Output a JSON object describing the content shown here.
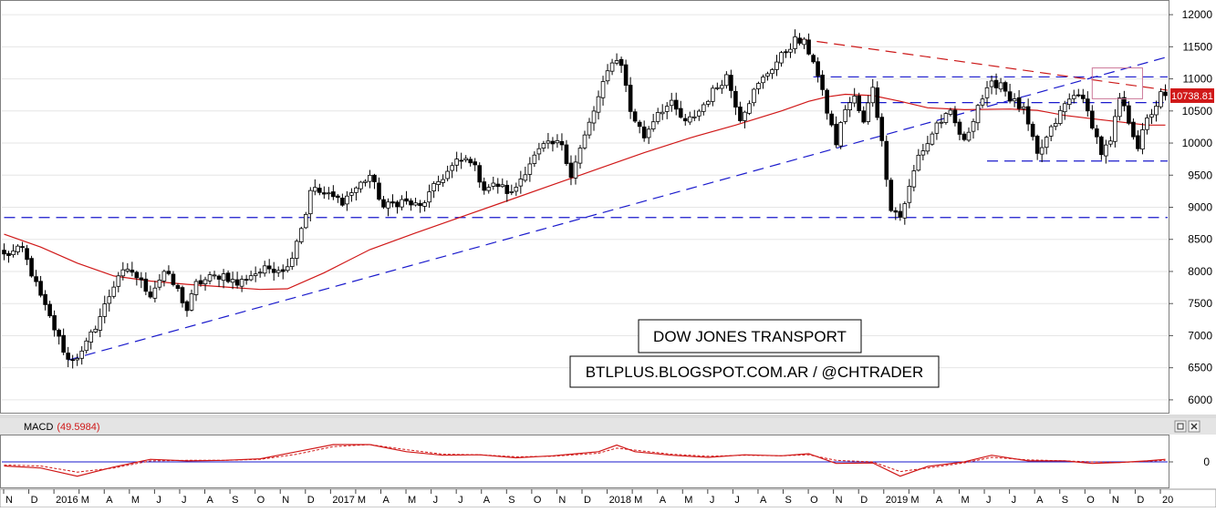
{
  "chart_data": {
    "type": "candlestick",
    "title": "DOW JONES TRANSPORT",
    "subtitle": "BTLPLUS.BLOGSPOT.COM.AR / @CHTRADER",
    "price_axis": {
      "ylim": [
        5800,
        12200
      ],
      "ticks": [
        6000,
        6500,
        7000,
        7500,
        8000,
        8500,
        9000,
        9500,
        10000,
        10500,
        11000,
        11500,
        12000
      ],
      "labels": [
        "6000",
        "6500",
        "7000",
        "7500",
        "8000",
        "8500",
        "9000",
        "9500",
        "10000",
        "10500",
        "11000",
        "11500",
        "12000"
      ],
      "last_price_label": "10738.81",
      "last_price": 10738.81
    },
    "time_axis": {
      "labels": [
        "N",
        "D",
        "2016",
        "M",
        "A",
        "M",
        "J",
        "J",
        "A",
        "S",
        "O",
        "N",
        "D",
        "2017",
        "M",
        "A",
        "M",
        "J",
        "J",
        "A",
        "S",
        "O",
        "N",
        "D",
        "2018",
        "M",
        "A",
        "M",
        "J",
        "J",
        "A",
        "S",
        "O",
        "N",
        "D",
        "2019",
        "M",
        "A",
        "M",
        "J",
        "J",
        "A",
        "S",
        "O",
        "N",
        "D",
        "20"
      ]
    },
    "anchors": [
      [
        0,
        8250
      ],
      [
        4,
        8350
      ],
      [
        8,
        7600
      ],
      [
        12,
        6950
      ],
      [
        14,
        6620
      ],
      [
        17,
        6720
      ],
      [
        21,
        7300
      ],
      [
        25,
        7950
      ],
      [
        28,
        8000
      ],
      [
        32,
        7650
      ],
      [
        35,
        8000
      ],
      [
        38,
        7700
      ],
      [
        40,
        7400
      ],
      [
        42,
        7800
      ],
      [
        45,
        7900
      ],
      [
        48,
        7950
      ],
      [
        51,
        7800
      ],
      [
        54,
        7950
      ],
      [
        58,
        8050
      ],
      [
        62,
        8050
      ],
      [
        64,
        8500
      ],
      [
        66,
        8900
      ],
      [
        67,
        9300
      ],
      [
        70,
        9200
      ],
      [
        74,
        9100
      ],
      [
        77,
        9300
      ],
      [
        80,
        9500
      ],
      [
        83,
        9000
      ],
      [
        87,
        9100
      ],
      [
        91,
        9000
      ],
      [
        95,
        9400
      ],
      [
        99,
        9700
      ],
      [
        102,
        9750
      ],
      [
        105,
        9300
      ],
      [
        108,
        9350
      ],
      [
        111,
        9200
      ],
      [
        115,
        9700
      ],
      [
        118,
        9950
      ],
      [
        122,
        10000
      ],
      [
        124,
        9500
      ],
      [
        127,
        10100
      ],
      [
        130,
        10700
      ],
      [
        133,
        11300
      ],
      [
        135,
        11250
      ],
      [
        137,
        10500
      ],
      [
        140,
        10100
      ],
      [
        143,
        10500
      ],
      [
        146,
        10600
      ],
      [
        149,
        10300
      ],
      [
        152,
        10500
      ],
      [
        155,
        10800
      ],
      [
        158,
        11050
      ],
      [
        161,
        10400
      ],
      [
        164,
        10800
      ],
      [
        167,
        11100
      ],
      [
        170,
        11350
      ],
      [
        173,
        11600
      ],
      [
        175,
        11550
      ],
      [
        177,
        11300
      ],
      [
        180,
        10500
      ],
      [
        182,
        10000
      ],
      [
        184,
        10550
      ],
      [
        186,
        10700
      ],
      [
        188,
        10300
      ],
      [
        190,
        10900
      ],
      [
        192,
        10000
      ],
      [
        194,
        9000
      ],
      [
        196,
        8850
      ],
      [
        198,
        9300
      ],
      [
        200,
        9800
      ],
      [
        202,
        10000
      ],
      [
        204,
        10300
      ],
      [
        207,
        10450
      ],
      [
        210,
        10000
      ],
      [
        213,
        10600
      ],
      [
        216,
        10900
      ],
      [
        218,
        10950
      ],
      [
        220,
        10700
      ],
      [
        223,
        10500
      ],
      [
        226,
        9800
      ],
      [
        229,
        10200
      ],
      [
        232,
        10600
      ],
      [
        235,
        10800
      ],
      [
        238,
        10300
      ],
      [
        240,
        9850
      ],
      [
        242,
        10000
      ],
      [
        244,
        10700
      ],
      [
        246,
        10350
      ],
      [
        248,
        9950
      ],
      [
        250,
        10350
      ],
      [
        252,
        10600
      ],
      [
        253,
        10750
      ],
      [
        254,
        10739
      ]
    ],
    "moving_average": {
      "points": [
        [
          0,
          8580
        ],
        [
          8,
          8380
        ],
        [
          16,
          8130
        ],
        [
          24,
          7930
        ],
        [
          32,
          7850
        ],
        [
          40,
          7800
        ],
        [
          48,
          7760
        ],
        [
          56,
          7720
        ],
        [
          62,
          7730
        ],
        [
          70,
          7980
        ],
        [
          80,
          8340
        ],
        [
          90,
          8600
        ],
        [
          100,
          8850
        ],
        [
          110,
          9100
        ],
        [
          120,
          9350
        ],
        [
          130,
          9600
        ],
        [
          140,
          9850
        ],
        [
          150,
          10080
        ],
        [
          160,
          10280
        ],
        [
          170,
          10500
        ],
        [
          176,
          10650
        ],
        [
          180,
          10720
        ],
        [
          184,
          10760
        ],
        [
          190,
          10740
        ],
        [
          196,
          10650
        ],
        [
          202,
          10550
        ],
        [
          210,
          10520
        ],
        [
          220,
          10530
        ],
        [
          226,
          10510
        ],
        [
          232,
          10430
        ],
        [
          238,
          10380
        ],
        [
          244,
          10330
        ],
        [
          250,
          10280
        ],
        [
          254,
          10280
        ]
      ]
    },
    "lines": [
      {
        "style": "dashed",
        "color": "#1a1acc",
        "from": [
          14,
          6620
        ],
        "to": [
          400,
          14200
        ]
      },
      {
        "style": "dashed",
        "color": "#1a1acc",
        "from": [
          0,
          8840
        ],
        "to": [
          277,
          8840
        ]
      },
      {
        "style": "dashed",
        "color": "#1a1acc",
        "from": [
          183,
          10630
        ],
        "to": [
          277,
          10630
        ]
      },
      {
        "style": "dashed",
        "color": "#1a1acc",
        "from": [
          177,
          11030
        ],
        "to": [
          277,
          11030
        ]
      },
      {
        "style": "dashed",
        "color": "#1a1acc",
        "from": [
          215,
          9720
        ],
        "to": [
          277,
          9720
        ]
      },
      {
        "style": "dashed",
        "color": "#cc1a1a",
        "from": [
          174,
          11620
        ],
        "to": [
          277,
          10600
        ]
      }
    ],
    "highlight_box": {
      "from": [
        238,
        10690
      ],
      "to": [
        249,
        11170
      ]
    },
    "macd": {
      "label": "MACD",
      "value_label": "(49.5984)",
      "ylim": [
        -500,
        500
      ],
      "ticks": [
        0
      ],
      "main": [
        [
          0,
          -80
        ],
        [
          8,
          -120
        ],
        [
          16,
          -280
        ],
        [
          24,
          -100
        ],
        [
          32,
          50
        ],
        [
          40,
          20
        ],
        [
          48,
          30
        ],
        [
          56,
          60
        ],
        [
          64,
          200
        ],
        [
          72,
          340
        ],
        [
          80,
          340
        ],
        [
          88,
          200
        ],
        [
          96,
          130
        ],
        [
          104,
          140
        ],
        [
          112,
          80
        ],
        [
          120,
          120
        ],
        [
          130,
          200
        ],
        [
          134,
          330
        ],
        [
          138,
          200
        ],
        [
          146,
          130
        ],
        [
          154,
          90
        ],
        [
          162,
          140
        ],
        [
          170,
          120
        ],
        [
          176,
          160
        ],
        [
          182,
          -30
        ],
        [
          190,
          -20
        ],
        [
          196,
          -280
        ],
        [
          202,
          -90
        ],
        [
          210,
          0
        ],
        [
          216,
          130
        ],
        [
          224,
          20
        ],
        [
          232,
          20
        ],
        [
          238,
          -30
        ],
        [
          244,
          -10
        ],
        [
          250,
          20
        ],
        [
          254,
          49.6
        ]
      ],
      "signal": [
        [
          0,
          -60
        ],
        [
          8,
          -80
        ],
        [
          16,
          -200
        ],
        [
          24,
          -120
        ],
        [
          32,
          20
        ],
        [
          40,
          30
        ],
        [
          48,
          30
        ],
        [
          56,
          50
        ],
        [
          64,
          150
        ],
        [
          72,
          300
        ],
        [
          80,
          340
        ],
        [
          88,
          240
        ],
        [
          96,
          150
        ],
        [
          104,
          140
        ],
        [
          112,
          100
        ],
        [
          120,
          110
        ],
        [
          130,
          170
        ],
        [
          134,
          270
        ],
        [
          138,
          230
        ],
        [
          146,
          150
        ],
        [
          154,
          110
        ],
        [
          162,
          130
        ],
        [
          170,
          120
        ],
        [
          176,
          140
        ],
        [
          182,
          30
        ],
        [
          190,
          0
        ],
        [
          196,
          -190
        ],
        [
          202,
          -120
        ],
        [
          210,
          -20
        ],
        [
          216,
          90
        ],
        [
          224,
          40
        ],
        [
          232,
          20
        ],
        [
          238,
          0
        ],
        [
          244,
          -10
        ],
        [
          250,
          10
        ],
        [
          254,
          30
        ]
      ]
    }
  },
  "colors": {
    "background": "#ffffff",
    "grid": "#e6e6e6",
    "candle": "#000000",
    "moving_average": "#d01818",
    "trend_blue": "#1a1acc",
    "trend_red": "#cc1a1a",
    "price_tag": "#d01818",
    "highlight_box": "#cc7799",
    "panel_bar": "#e4e4e4"
  },
  "icons": {
    "panel_restore": "restore-window-icon",
    "panel_close": "close-window-icon"
  }
}
